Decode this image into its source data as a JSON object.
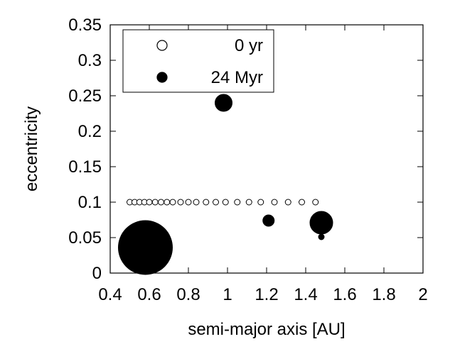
{
  "chart_data": {
    "type": "scatter",
    "xlabel": "semi-major axis [AU]",
    "ylabel": "eccentricity",
    "xlim": [
      0.4,
      2.0
    ],
    "ylim": [
      0.0,
      0.35
    ],
    "xticks": [
      0.4,
      0.6,
      0.8,
      1.0,
      1.2,
      1.4,
      1.6,
      1.8,
      2.0
    ],
    "xtick_labels": [
      "0.4",
      "0.6",
      "0.8",
      "1",
      "1.2",
      "1.4",
      "1.6",
      "1.8",
      "2"
    ],
    "yticks": [
      0.0,
      0.05,
      0.1,
      0.15,
      0.2,
      0.25,
      0.3,
      0.35
    ],
    "ytick_labels": [
      "0",
      "0.05",
      "0.1",
      "0.15",
      "0.2",
      "0.25",
      "0.3",
      "0.35"
    ],
    "grid": false,
    "legend_position": "top-left",
    "series": [
      {
        "name": "0 yr",
        "marker": "open-circle",
        "color": "#000000",
        "points": [
          {
            "x": 0.5,
            "y": 0.1,
            "r": 4
          },
          {
            "x": 0.525,
            "y": 0.1,
            "r": 4
          },
          {
            "x": 0.55,
            "y": 0.1,
            "r": 4
          },
          {
            "x": 0.575,
            "y": 0.1,
            "r": 4
          },
          {
            "x": 0.6,
            "y": 0.1,
            "r": 4
          },
          {
            "x": 0.63,
            "y": 0.1,
            "r": 4
          },
          {
            "x": 0.66,
            "y": 0.1,
            "r": 4
          },
          {
            "x": 0.69,
            "y": 0.1,
            "r": 4
          },
          {
            "x": 0.72,
            "y": 0.1,
            "r": 4
          },
          {
            "x": 0.76,
            "y": 0.1,
            "r": 4
          },
          {
            "x": 0.8,
            "y": 0.1,
            "r": 4
          },
          {
            "x": 0.84,
            "y": 0.1,
            "r": 4
          },
          {
            "x": 0.89,
            "y": 0.1,
            "r": 4
          },
          {
            "x": 0.94,
            "y": 0.1,
            "r": 4
          },
          {
            "x": 0.99,
            "y": 0.1,
            "r": 4
          },
          {
            "x": 1.05,
            "y": 0.1,
            "r": 4
          },
          {
            "x": 1.11,
            "y": 0.1,
            "r": 4
          },
          {
            "x": 1.17,
            "y": 0.1,
            "r": 4
          },
          {
            "x": 1.24,
            "y": 0.1,
            "r": 4
          },
          {
            "x": 1.31,
            "y": 0.1,
            "r": 4
          },
          {
            "x": 1.38,
            "y": 0.1,
            "r": 4
          },
          {
            "x": 1.45,
            "y": 0.1,
            "r": 4
          }
        ]
      },
      {
        "name": "24 Myr",
        "marker": "filled-circle",
        "color": "#000000",
        "points": [
          {
            "x": 0.58,
            "y": 0.036,
            "r": 38
          },
          {
            "x": 0.98,
            "y": 0.24,
            "r": 12
          },
          {
            "x": 1.21,
            "y": 0.074,
            "r": 8
          },
          {
            "x": 1.48,
            "y": 0.071,
            "r": 16
          },
          {
            "x": 1.48,
            "y": 0.051,
            "r": 4
          }
        ]
      }
    ]
  }
}
